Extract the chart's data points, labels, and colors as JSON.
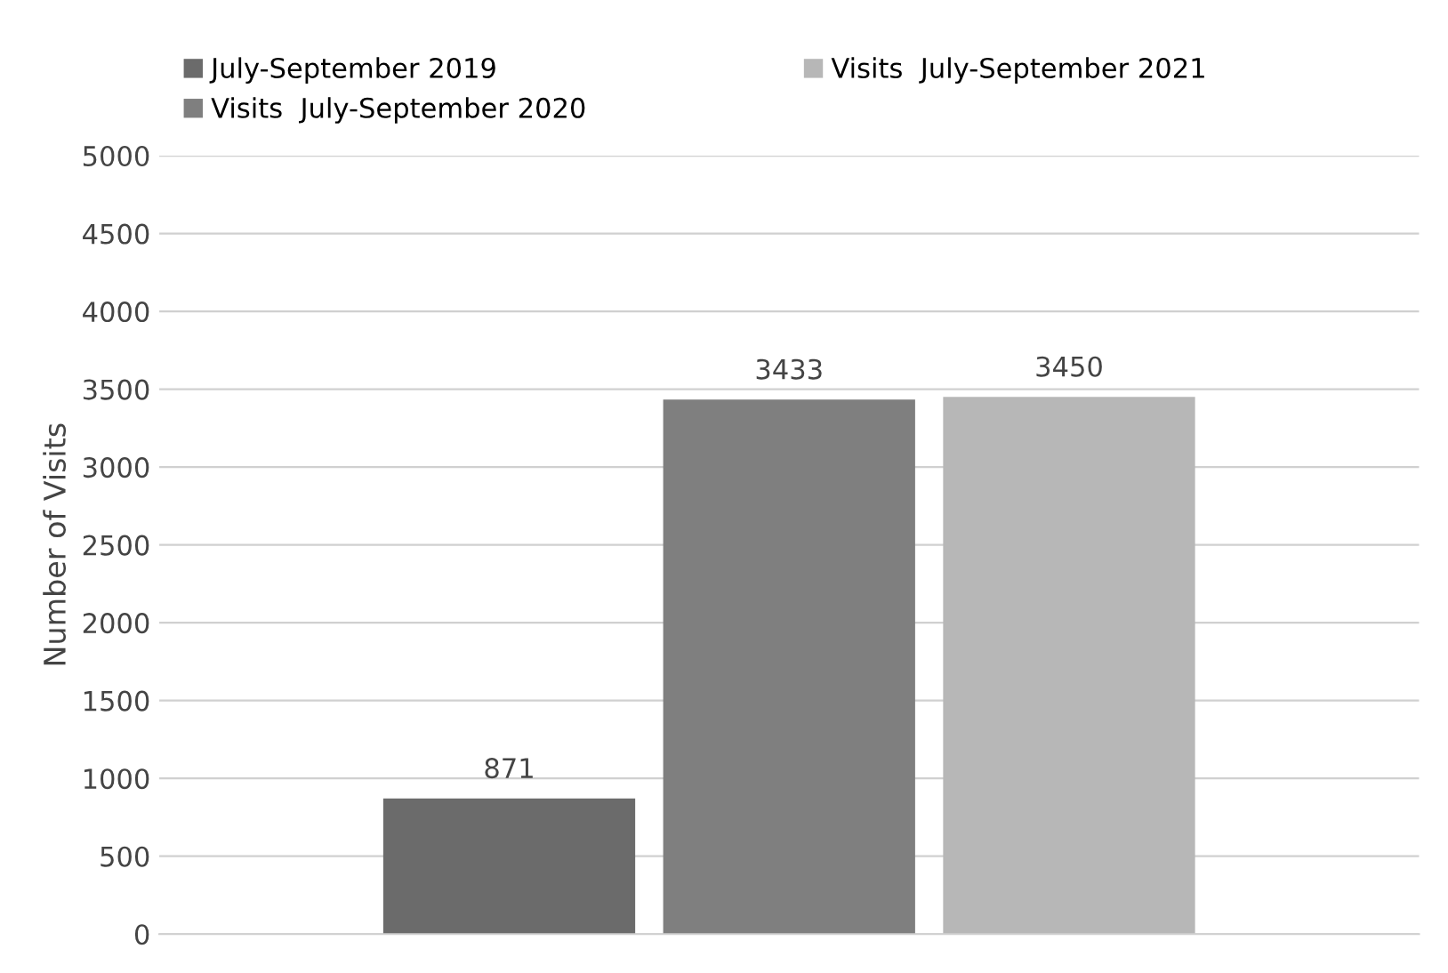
{
  "chart_data": {
    "type": "bar",
    "ylabel": "Number of Visits",
    "categories": [
      null
    ],
    "series": [
      {
        "name": "July-September 2019",
        "color": "#6b6b6b",
        "values": [
          871
        ]
      },
      {
        "name": "Visits  July-September 2020",
        "color": "#7f7f7f",
        "values": [
          3433
        ]
      },
      {
        "name": "Visits  July-September 2021",
        "color": "#b7b7b7",
        "values": [
          3450
        ]
      }
    ],
    "ylim": [
      0,
      5000
    ],
    "yticks": [
      0,
      500,
      1000,
      1500,
      2000,
      2500,
      3000,
      3500,
      4000,
      4500,
      5000
    ],
    "grid": "y",
    "legend": "top",
    "data_labels": true
  }
}
